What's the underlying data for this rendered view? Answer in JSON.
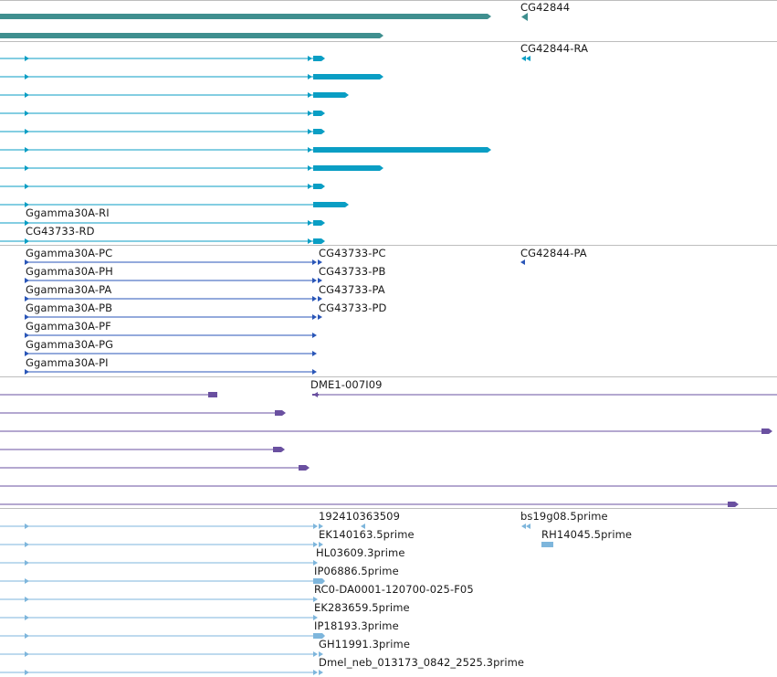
{
  "colors": {
    "gene": "#3f8f8f",
    "mrna": "#0a9ec4",
    "transcript": "#2a56b8",
    "sequence": "#6a50a0",
    "est": "#7eb6dc",
    "separator": "#bdbdbd"
  },
  "tracks": {
    "gene": {
      "labels": [
        "CG42844"
      ]
    },
    "mrna": {
      "labels": [
        "CG42844-RA",
        "Ggamma30A-RI",
        "CG43733-RD"
      ]
    },
    "transcript": {
      "labels": [
        "Ggamma30A-PC",
        "Ggamma30A-PH",
        "Ggamma30A-PA",
        "Ggamma30A-PB",
        "Ggamma30A-PF",
        "Ggamma30A-PG",
        "Ggamma30A-PI",
        "CG43733-PC",
        "CG43733-PB",
        "CG43733-PA",
        "CG43733-PD",
        "CG42844-PA"
      ]
    },
    "sequence": {
      "labels": [
        "DME1-007I09"
      ]
    },
    "est": {
      "labels": [
        "192410363509",
        "EK140163.5prime",
        "HL03609.3prime",
        "IP06886.5prime",
        "RC0-DA0001-120700-025-F05",
        "EK283659.5prime",
        "IP18193.3prime",
        "GH11991.3prime",
        "Dmel_neb_013173_0842_2525.3prime",
        "bs19g08.5prime",
        "RH14045.5prime"
      ]
    }
  }
}
